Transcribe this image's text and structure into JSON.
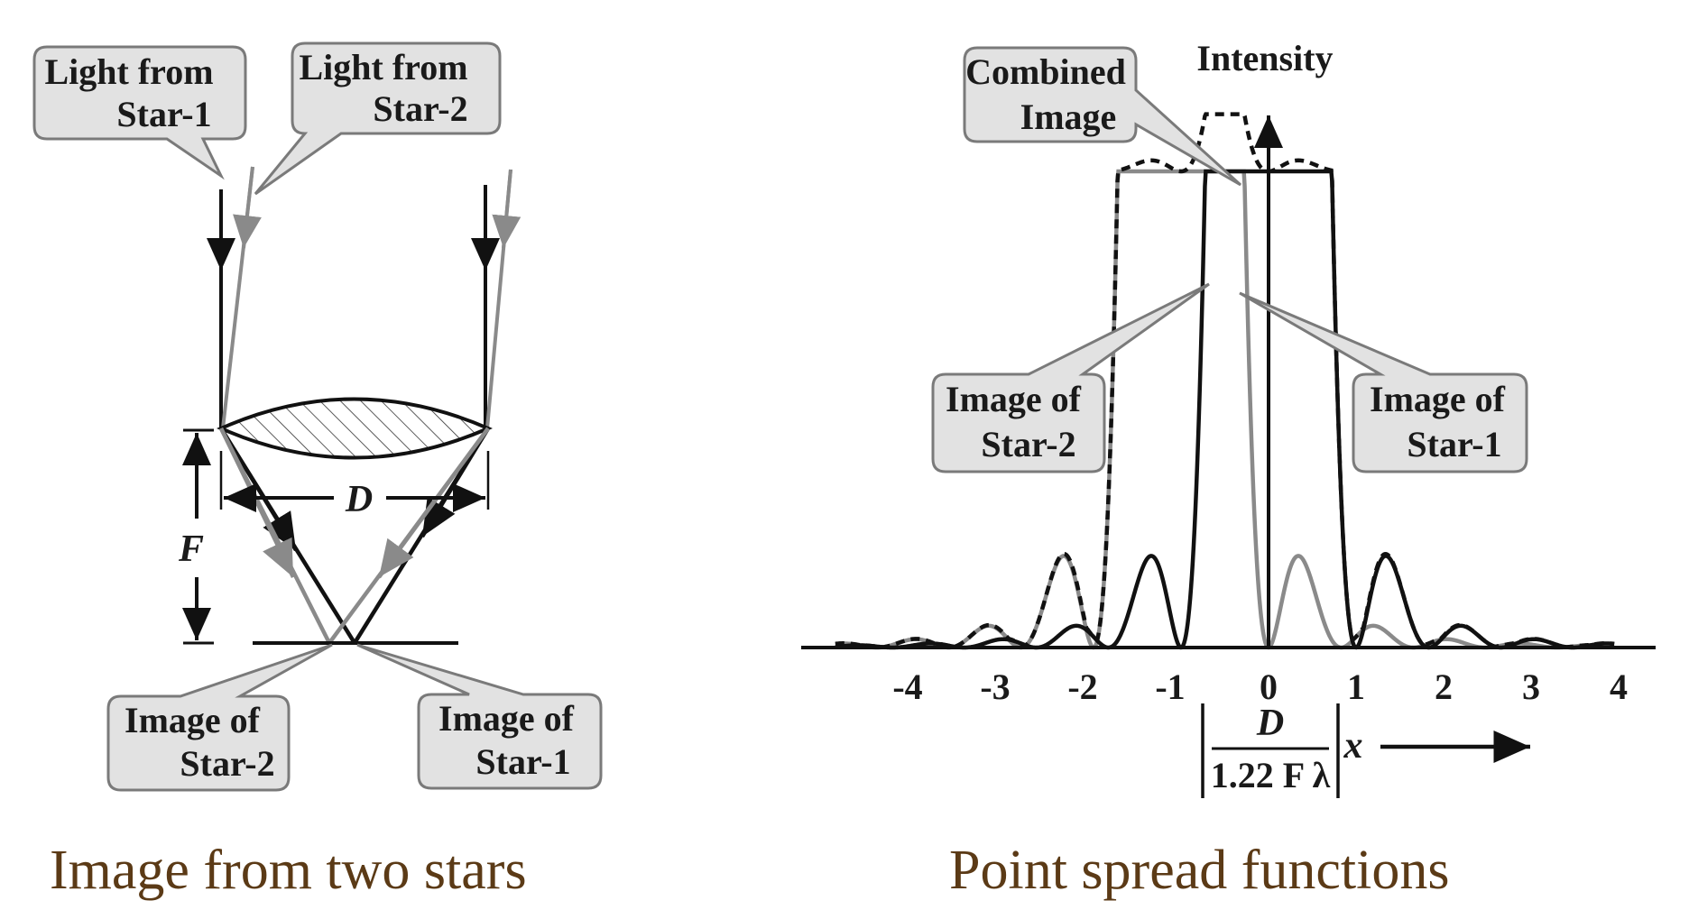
{
  "colors": {
    "star1": "#111111",
    "star2": "#8a8a8a",
    "combined": "#111111",
    "callout_fill": "#e2e2e2",
    "callout_stroke": "#7a7a7a",
    "caption": "#5b3a16"
  },
  "lens_diagram": {
    "callouts": {
      "light_star1": [
        "Light from",
        "Star-1"
      ],
      "light_star2": [
        "Light from",
        "Star-2"
      ],
      "image_star2": [
        "Image of",
        "Star-2"
      ],
      "image_star1": [
        "Image of",
        "Star-1"
      ]
    },
    "labels": {
      "diameter": "D",
      "focal_length": "F"
    },
    "caption": "Image from two stars"
  },
  "psf_chart": {
    "y_axis_label": "Intensity",
    "callouts": {
      "combined": [
        "Combined",
        "Image"
      ],
      "image_star2": [
        "Image of",
        "Star-2"
      ],
      "image_star1": [
        "Image of",
        "Star-1"
      ]
    },
    "x_axis_label": {
      "numerator": "D",
      "denominator": "1.22 F λ",
      "variable": "x"
    },
    "caption": "Point spread functions"
  },
  "chart_data": {
    "type": "line",
    "title": "Point spread functions",
    "ylabel": "Intensity",
    "xlabel": "[D / 1.22 F λ] x",
    "x_ticks": [
      -4,
      -3,
      -2,
      -1,
      0,
      1,
      2,
      3,
      4
    ],
    "tick_labels": [
      "-4",
      "-3",
      "-2",
      "-1",
      "0",
      "1",
      "2",
      "3",
      "4"
    ],
    "xlim": [
      -5,
      4
    ],
    "ylim": [
      0,
      1
    ],
    "series": [
      {
        "name": "Image of Star-1",
        "center": 0,
        "style": "solid",
        "color": "#111111"
      },
      {
        "name": "Image of Star-2",
        "center": -1,
        "style": "solid",
        "color": "#8a8a8a"
      },
      {
        "name": "Combined Image",
        "center": null,
        "style": "dashed",
        "color": "#111111"
      }
    ]
  }
}
